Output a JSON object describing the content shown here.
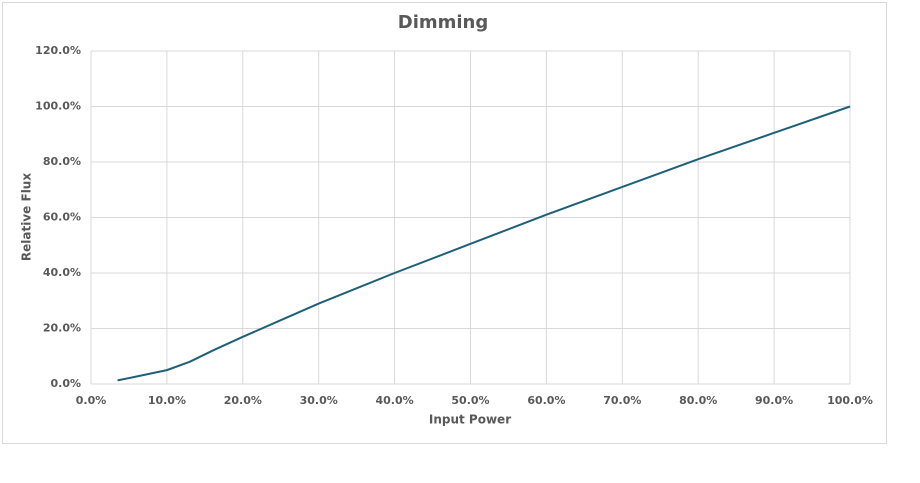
{
  "chart_data": {
    "type": "line",
    "title": "Dimming",
    "x_label": "Input Power",
    "y_label": "Relative Flux",
    "x": [
      3.5,
      6,
      10,
      13,
      16,
      20,
      25,
      30,
      40,
      50,
      60,
      70,
      80,
      90,
      100
    ],
    "series": [
      {
        "name": "Relative Flux",
        "color": "#1f6079",
        "values": [
          1.3,
          2.7,
          5,
          8,
          12,
          17,
          23,
          29,
          40,
          50.5,
          61,
          71,
          81,
          90.5,
          100
        ]
      }
    ],
    "xlim": [
      0,
      100
    ],
    "ylim": [
      0,
      120
    ],
    "xticks": [
      {
        "value": 0,
        "label": "0.0%"
      },
      {
        "value": 10,
        "label": "10.0%"
      },
      {
        "value": 20,
        "label": "20.0%"
      },
      {
        "value": 30,
        "label": "30.0%"
      },
      {
        "value": 40,
        "label": "40.0%"
      },
      {
        "value": 50,
        "label": "50.0%"
      },
      {
        "value": 60,
        "label": "60.0%"
      },
      {
        "value": 70,
        "label": "70.0%"
      },
      {
        "value": 80,
        "label": "80.0%"
      },
      {
        "value": 90,
        "label": "90.0%"
      },
      {
        "value": 100,
        "label": "100.0%"
      }
    ],
    "yticks": [
      {
        "value": 0,
        "label": "0.0%"
      },
      {
        "value": 20,
        "label": "20.0%"
      },
      {
        "value": 40,
        "label": "40.0%"
      },
      {
        "value": 60,
        "label": "60.0%"
      },
      {
        "value": 80,
        "label": "80.0%"
      },
      {
        "value": 100,
        "label": "100.0%"
      },
      {
        "value": 120,
        "label": "120.0%"
      }
    ],
    "grid": true
  }
}
